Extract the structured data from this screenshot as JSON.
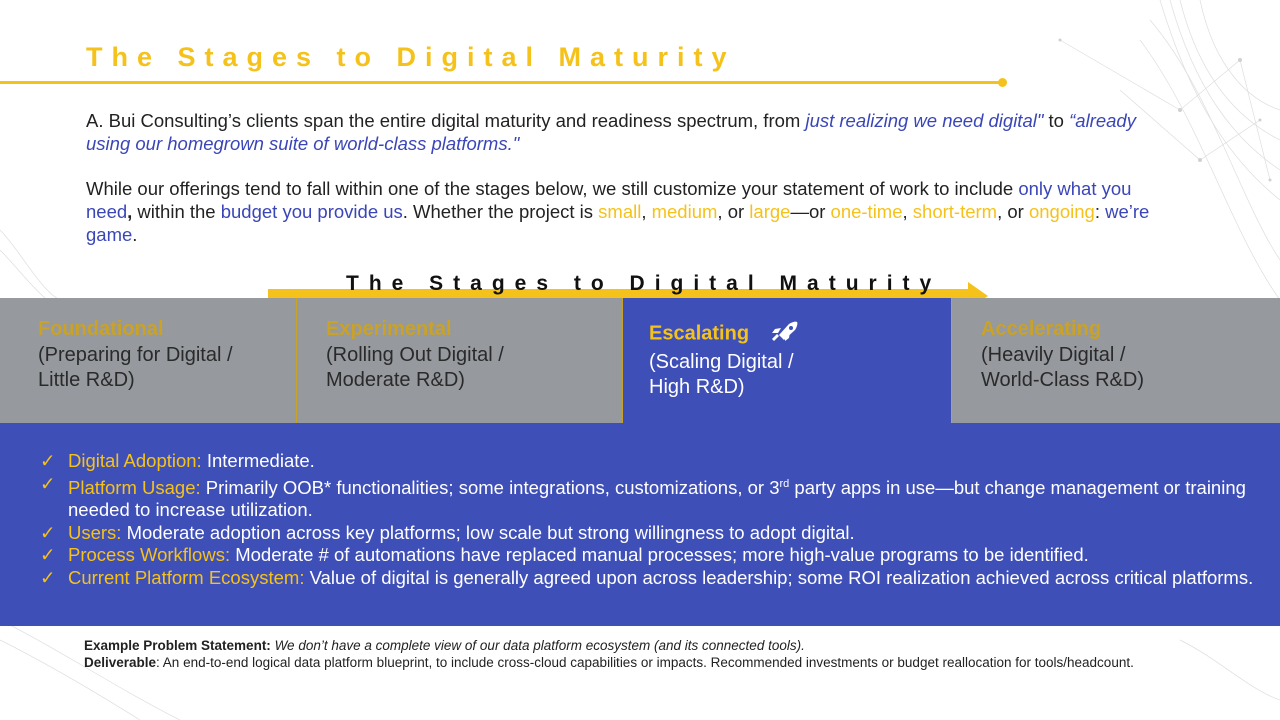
{
  "title": "The Stages to Digital Maturity",
  "intro": {
    "p1_a": "A. Bui Consulting’s clients span the entire digital maturity and readiness spectrum, from ",
    "p1_q1": "just realizing we need digital\"",
    "p1_b": " to ",
    "p1_q2": "“already using our homegrown suite of world-class platforms.\"",
    "p2_a": "While our offerings tend to fall within one of the stages below, we still customize your statement of work to include ",
    "p2_need": "only what you need",
    "p2_comma": ",",
    "p2_b": " within the ",
    "p2_budget": "budget you provide us",
    "p2_c": ". Whether the project is ",
    "p2_small": "small",
    "p2_d": ", ",
    "p2_medium": "medium",
    "p2_e": ", or ",
    "p2_large": "large",
    "p2_f": "—or ",
    "p2_onetime": "one-time",
    "p2_g": ", ",
    "p2_short": "short-term",
    "p2_h": ", or ",
    "p2_ongoing": "ongoing",
    "p2_i": ": ",
    "p2_game": "we’re game",
    "p2_j": "."
  },
  "arrow_label": "The Stages to Digital Maturity",
  "stages": [
    {
      "name": "Foundational",
      "sub": "(Preparing for Digital /\nLittle R&D)"
    },
    {
      "name": "Experimental",
      "sub": "(Rolling Out Digital /\nModerate R&D)"
    },
    {
      "name": "Escalating",
      "sub": "(Scaling Digital /\nHigh R&D)",
      "icon": "rocket-icon"
    },
    {
      "name": "Accelerating",
      "sub": "(Heavily Digital /\nWorld-Class R&D)"
    }
  ],
  "checklist": [
    {
      "key": "Digital Adoption:",
      "text": " Intermediate."
    },
    {
      "key": "Platform Usage:",
      "text": " Primarily OOB* functionalities; some integrations, customizations, or 3",
      "sup": "rd",
      "text2": " party apps in use—but change management or training needed to increase utilization."
    },
    {
      "key": "Users:",
      "text": " Moderate adoption across key platforms; low scale but strong willingness to adopt digital."
    },
    {
      "key": "Process Workflows:",
      "text": " Moderate # of automations have replaced manual processes; more high-value programs to be identified."
    },
    {
      "key": "Current Platform Ecosystem:",
      "text": " Value of digital is generally agreed upon across leadership; some ROI realization achieved across critical platforms."
    }
  ],
  "check_glyph": "✓",
  "footer": {
    "problem_label": "Example Problem Statement:",
    "problem_text": " We don’t have a complete view of our data platform ecosystem (and its connected tools).",
    "deliverable_label": "Deliverable",
    "deliverable_text": ":  An end-to-end logical data platform blueprint, to include cross-cloud capabilities or impacts. Recommended investments or budget reallocation for tools/headcount."
  },
  "colors": {
    "accent": "#f5c21b",
    "blue": "#3e4fb8",
    "gray": "#96999e",
    "link": "#3a46b8"
  }
}
